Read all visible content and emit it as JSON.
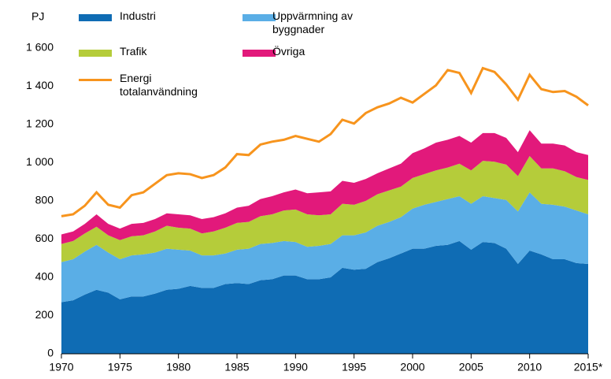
{
  "chart_data": {
    "type": "stacked-area-line",
    "ylabel": "PJ",
    "x": [
      1970,
      1971,
      1972,
      1973,
      1974,
      1975,
      1976,
      1977,
      1978,
      1979,
      1980,
      1981,
      1982,
      1983,
      1984,
      1985,
      1986,
      1987,
      1988,
      1989,
      1990,
      1991,
      1992,
      1993,
      1994,
      1995,
      1996,
      1997,
      1998,
      1999,
      2000,
      2001,
      2002,
      2003,
      2004,
      2005,
      2006,
      2007,
      2008,
      2009,
      2010,
      2011,
      2012,
      2013,
      2014,
      2015
    ],
    "xlim": [
      1970,
      2015
    ],
    "xticks": [
      1970,
      1975,
      1980,
      1985,
      1990,
      1995,
      2000,
      2005,
      2010,
      {
        "value": 2015,
        "label": "2015*"
      }
    ],
    "ylim": [
      0,
      1600
    ],
    "yticks": [
      0,
      200,
      400,
      600,
      800,
      {
        "value": 1000,
        "label": "1 000"
      },
      {
        "value": 1200,
        "label": "1 200"
      },
      {
        "value": 1400,
        "label": "1 400"
      },
      {
        "value": 1600,
        "label": "1 600"
      }
    ],
    "grid": false,
    "series": [
      {
        "name": "Industri",
        "color": "#0f6cb4",
        "stack": true,
        "values": [
          270,
          280,
          310,
          335,
          320,
          285,
          300,
          300,
          315,
          335,
          340,
          355,
          345,
          345,
          365,
          370,
          365,
          385,
          390,
          410,
          410,
          390,
          390,
          400,
          450,
          440,
          445,
          480,
          500,
          525,
          550,
          550,
          565,
          570,
          590,
          545,
          585,
          580,
          550,
          470,
          540,
          520,
          495,
          495,
          475,
          470
        ]
      },
      {
        "name": "Uppvärmning av byggnader",
        "color": "#5aaee6",
        "stack": true,
        "values": [
          210,
          215,
          225,
          235,
          210,
          210,
          215,
          220,
          215,
          215,
          205,
          185,
          170,
          170,
          160,
          175,
          185,
          190,
          190,
          180,
          175,
          170,
          175,
          175,
          170,
          180,
          190,
          190,
          190,
          190,
          210,
          230,
          230,
          240,
          235,
          240,
          240,
          235,
          255,
          275,
          305,
          265,
          285,
          275,
          275,
          260
        ]
      },
      {
        "name": "Trafik",
        "color": "#b5cc3a",
        "stack": true,
        "values": [
          95,
          95,
          95,
          95,
          90,
          100,
          100,
          100,
          110,
          120,
          115,
          115,
          115,
          125,
          135,
          140,
          140,
          145,
          150,
          160,
          170,
          170,
          160,
          155,
          165,
          160,
          165,
          165,
          165,
          160,
          160,
          160,
          165,
          165,
          170,
          175,
          185,
          190,
          185,
          185,
          190,
          185,
          190,
          185,
          175,
          180
        ]
      },
      {
        "name": "Övriga",
        "color": "#e2197b",
        "stack": true,
        "values": [
          50,
          50,
          50,
          65,
          60,
          60,
          65,
          65,
          65,
          65,
          70,
          70,
          75,
          75,
          75,
          80,
          85,
          90,
          95,
          95,
          105,
          110,
          120,
          120,
          120,
          115,
          115,
          110,
          115,
          120,
          130,
          135,
          145,
          145,
          145,
          145,
          145,
          150,
          140,
          125,
          135,
          130,
          130,
          135,
          130,
          130
        ]
      },
      {
        "name": "Energi totalanvändning",
        "color": "#f7941d",
        "stack": false,
        "values": [
          720,
          730,
          775,
          845,
          780,
          765,
          830,
          845,
          890,
          935,
          945,
          940,
          920,
          935,
          975,
          1045,
          1040,
          1095,
          1110,
          1120,
          1140,
          1125,
          1110,
          1150,
          1225,
          1205,
          1260,
          1290,
          1310,
          1340,
          1315,
          1360,
          1405,
          1485,
          1470,
          1365,
          1495,
          1475,
          1410,
          1330,
          1460,
          1385,
          1370,
          1375,
          1345,
          1300
        ]
      }
    ]
  }
}
